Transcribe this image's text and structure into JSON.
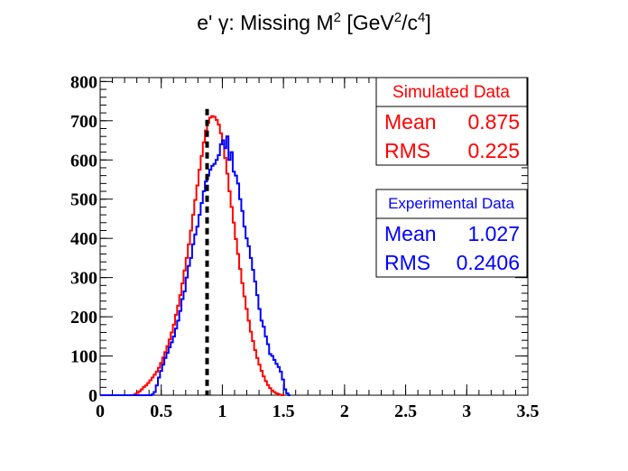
{
  "chart_data": {
    "type": "histogram",
    "title": {
      "prefix": "e' γ: Missing M",
      "sup1": "2",
      "mid": " [GeV",
      "sup2": "2",
      "mid2": "/c",
      "sup3": "4",
      "suffix": "]"
    },
    "xlabel": "",
    "ylabel": "",
    "xlim": [
      0,
      3.5
    ],
    "ylim": [
      0,
      810
    ],
    "x_ticks": [
      "0",
      "0.5",
      "1",
      "1.5",
      "2",
      "2.5",
      "3",
      "3.5"
    ],
    "y_ticks": [
      "0",
      "100",
      "200",
      "300",
      "400",
      "500",
      "600",
      "700",
      "800"
    ],
    "bin_width": 0.0175,
    "series": [
      {
        "name": "Simulated Data",
        "color": "#ff0000",
        "x_start": 0.0,
        "counts": [
          0,
          0,
          0,
          0,
          0,
          0,
          0,
          0,
          0,
          0,
          0,
          0,
          0,
          0,
          0,
          0,
          3,
          6,
          10,
          15,
          21,
          25,
          31,
          38,
          45,
          52,
          60,
          70,
          82,
          96,
          110,
          125,
          142,
          160,
          180,
          205,
          228,
          255,
          285,
          318,
          350,
          385,
          420,
          460,
          498,
          535,
          575,
          610,
          645,
          675,
          695,
          708,
          712,
          710,
          702,
          690,
          668,
          640,
          605,
          565,
          520,
          480,
          440,
          398,
          360,
          322,
          286,
          252,
          220,
          190,
          162,
          138,
          115,
          95,
          78,
          62,
          48,
          36,
          26,
          18,
          12,
          8,
          5,
          3,
          1,
          0
        ]
      },
      {
        "name": "Experimental Data",
        "color": "#0000ff",
        "x_start": 0.0,
        "counts": [
          0,
          0,
          0,
          0,
          0,
          0,
          0,
          0,
          0,
          0,
          0,
          0,
          0,
          0,
          0,
          0,
          0,
          0,
          0,
          0,
          0,
          0,
          0,
          0,
          2,
          8,
          25,
          45,
          62,
          78,
          95,
          108,
          122,
          135,
          150,
          170,
          190,
          215,
          245,
          265,
          300,
          330,
          350,
          385,
          410,
          430,
          460,
          490,
          520,
          545,
          560,
          575,
          585,
          590,
          600,
          612,
          640,
          650,
          630,
          660,
          600,
          620,
          570,
          560,
          540,
          500,
          470,
          430,
          400,
          380,
          350,
          320,
          290,
          255,
          220,
          190,
          175,
          150,
          130,
          105,
          100,
          90,
          80,
          72,
          60,
          40,
          15,
          5,
          0
        ]
      }
    ],
    "vertical_marker": {
      "x": 0.875,
      "style": "dashed",
      "color": "#000000"
    },
    "stats_boxes": [
      {
        "title": "Simulated Data",
        "color": "#ff0000",
        "rows": [
          {
            "label": "Mean",
            "value": "0.875"
          },
          {
            "label": "RMS",
            "value": "0.225"
          }
        ]
      },
      {
        "title": "Experimental Data",
        "color": "#0000ff",
        "rows": [
          {
            "label": "Mean",
            "value": "1.027"
          },
          {
            "label": "RMS",
            "value": "0.2406"
          }
        ]
      }
    ],
    "grid": false,
    "legend_placement": "top-right"
  }
}
